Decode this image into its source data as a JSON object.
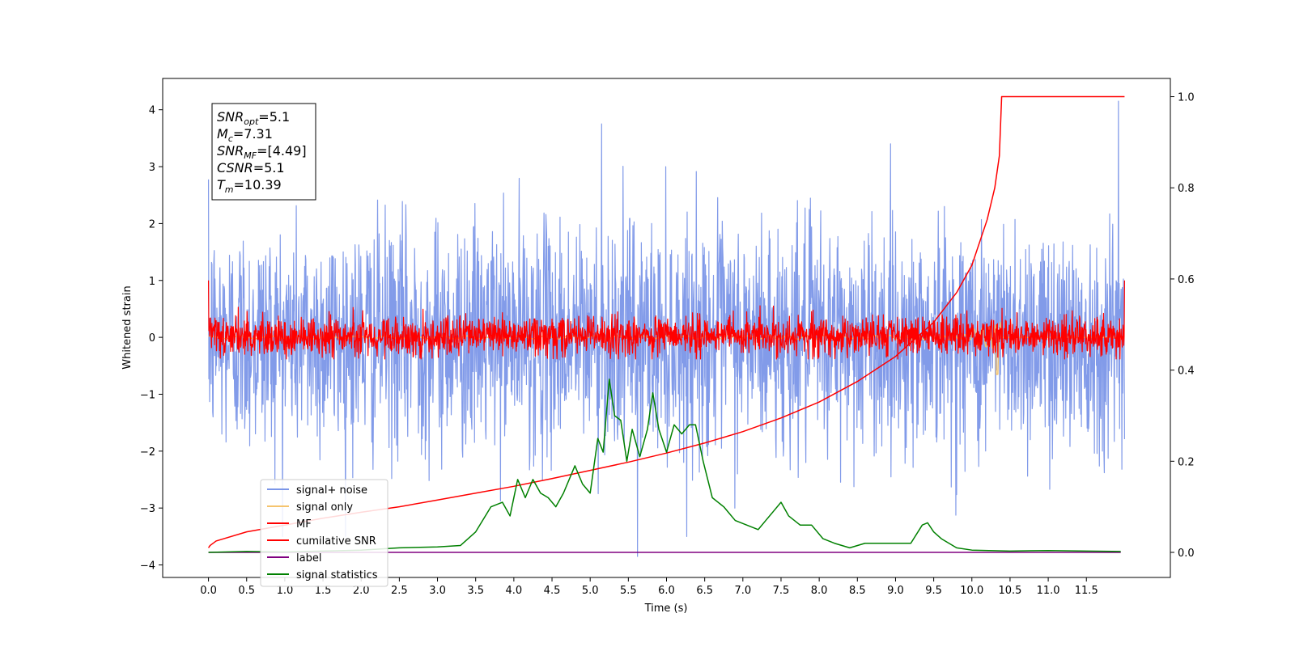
{
  "chart_data": {
    "type": "line",
    "title": "",
    "xlabel": "Time (s)",
    "ylabel": "Whitened strain",
    "xlim": [
      -0.6,
      12.6
    ],
    "ylim": [
      -4.22,
      4.55
    ],
    "y2lim": [
      -0.055,
      1.04
    ],
    "xticks": [
      "0.0",
      "0.5",
      "1.0",
      "1.5",
      "2.0",
      "2.5",
      "3.0",
      "3.5",
      "4.0",
      "4.5",
      "5.0",
      "5.5",
      "6.0",
      "6.5",
      "7.0",
      "7.5",
      "8.0",
      "8.5",
      "9.0",
      "9.5",
      "10.0",
      "10.5",
      "11.0",
      "11.5"
    ],
    "yticks": [
      "4",
      "3",
      "2",
      "1",
      "0",
      "−1",
      "−2",
      "−3",
      "−4"
    ],
    "y2ticks": [
      "1.0",
      "0.8",
      "0.6",
      "0.4",
      "0.2",
      "0.0"
    ],
    "grid": false,
    "legend_position": "lower-left",
    "annotation": {
      "lines": [
        {
          "sym": "SNR",
          "sub": "opt",
          "val": "=5.1"
        },
        {
          "sym": "M",
          "sub": "c",
          "val": "=7.31"
        },
        {
          "sym": "SNR",
          "sub": "MF",
          "val": "=[4.49]"
        },
        {
          "sym": "CSNR",
          "sub": "",
          "val": "=5.1"
        },
        {
          "sym": "T",
          "sub": "m",
          "val": "=10.39"
        }
      ]
    },
    "series": [
      {
        "name": "signal+ noise",
        "color": "#7b96e8",
        "axis": "left",
        "kind": "noise",
        "x_range": [
          0.0,
          12.0
        ],
        "amplitude": 1.0,
        "spikes": [
          [
            5.15,
            3.75
          ],
          [
            5.62,
            -3.85
          ],
          [
            11.92,
            4.15
          ]
        ]
      },
      {
        "name": "signal only",
        "color": "#f5c46e",
        "axis": "left",
        "kind": "chirp",
        "x_range": [
          0.0,
          12.0
        ],
        "merger_time": 10.39,
        "peak": -0.65
      },
      {
        "name": "MF",
        "color": "#ff0000",
        "axis": "left",
        "kind": "noise",
        "x_range": [
          0.0,
          12.0
        ],
        "amplitude": 0.17,
        "spikes": [
          [
            0.0,
            1.0
          ],
          [
            12.0,
            1.0
          ]
        ]
      },
      {
        "name": "cumilative SNR",
        "color": "#ff0000",
        "axis": "right",
        "x": [
          0.0,
          0.02,
          0.1,
          0.5,
          1.0,
          1.5,
          2.0,
          2.5,
          3.0,
          3.5,
          4.0,
          4.5,
          5.0,
          5.5,
          6.0,
          6.5,
          7.0,
          7.5,
          8.0,
          8.5,
          9.0,
          9.5,
          9.8,
          10.0,
          10.2,
          10.3,
          10.36,
          10.39,
          12.0
        ],
        "y": [
          0.01,
          0.015,
          0.025,
          0.045,
          0.06,
          0.075,
          0.088,
          0.1,
          0.115,
          0.13,
          0.145,
          0.162,
          0.18,
          0.198,
          0.218,
          0.24,
          0.265,
          0.295,
          0.33,
          0.375,
          0.43,
          0.505,
          0.57,
          0.63,
          0.73,
          0.8,
          0.87,
          1.0,
          1.0
        ]
      },
      {
        "name": "label",
        "color": "#800080",
        "axis": "right",
        "x": [
          0.0,
          11.95
        ],
        "y": [
          0.0,
          0.0
        ]
      },
      {
        "name": "signal statistics",
        "color": "#008000",
        "axis": "right",
        "x": [
          0.0,
          0.5,
          1.0,
          1.5,
          2.0,
          2.5,
          3.0,
          3.3,
          3.5,
          3.7,
          3.85,
          3.95,
          4.05,
          4.15,
          4.25,
          4.35,
          4.45,
          4.55,
          4.65,
          4.8,
          4.9,
          5.0,
          5.1,
          5.17,
          5.25,
          5.32,
          5.4,
          5.48,
          5.55,
          5.65,
          5.75,
          5.82,
          5.9,
          6.0,
          6.1,
          6.2,
          6.3,
          6.38,
          6.48,
          6.6,
          6.75,
          6.9,
          7.05,
          7.2,
          7.3,
          7.4,
          7.5,
          7.6,
          7.75,
          7.9,
          8.05,
          8.2,
          8.4,
          8.6,
          8.8,
          9.0,
          9.2,
          9.35,
          9.42,
          9.5,
          9.6,
          9.8,
          10.0,
          10.5,
          11.0,
          11.5,
          11.95
        ],
        "y": [
          0.0,
          0.002,
          0.001,
          0.003,
          0.005,
          0.01,
          0.012,
          0.015,
          0.045,
          0.1,
          0.11,
          0.08,
          0.16,
          0.12,
          0.16,
          0.13,
          0.12,
          0.1,
          0.13,
          0.19,
          0.15,
          0.13,
          0.25,
          0.22,
          0.38,
          0.3,
          0.29,
          0.2,
          0.27,
          0.21,
          0.27,
          0.35,
          0.27,
          0.22,
          0.28,
          0.26,
          0.28,
          0.28,
          0.2,
          0.12,
          0.1,
          0.07,
          0.06,
          0.05,
          0.07,
          0.09,
          0.11,
          0.08,
          0.06,
          0.06,
          0.03,
          0.02,
          0.01,
          0.02,
          0.02,
          0.02,
          0.02,
          0.06,
          0.065,
          0.045,
          0.03,
          0.01,
          0.005,
          0.003,
          0.004,
          0.003,
          0.002
        ]
      }
    ]
  }
}
